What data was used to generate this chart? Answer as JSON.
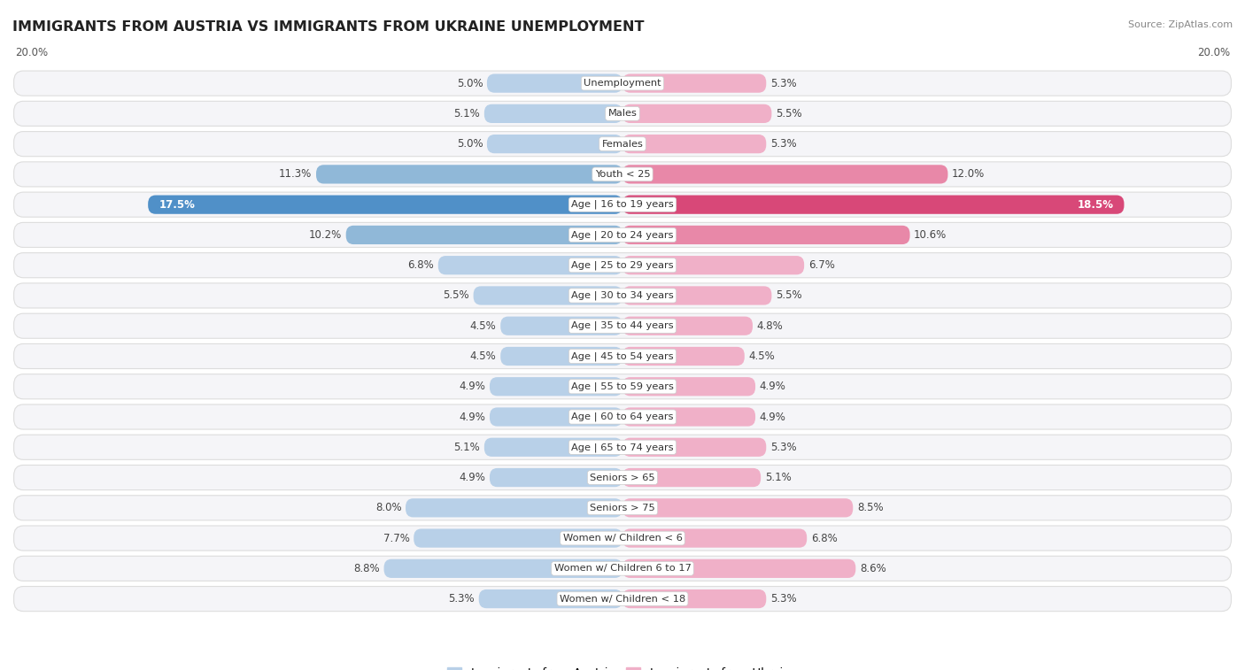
{
  "title": "IMMIGRANTS FROM AUSTRIA VS IMMIGRANTS FROM UKRAINE UNEMPLOYMENT",
  "source": "Source: ZipAtlas.com",
  "categories": [
    "Unemployment",
    "Males",
    "Females",
    "Youth < 25",
    "Age | 16 to 19 years",
    "Age | 20 to 24 years",
    "Age | 25 to 29 years",
    "Age | 30 to 34 years",
    "Age | 35 to 44 years",
    "Age | 45 to 54 years",
    "Age | 55 to 59 years",
    "Age | 60 to 64 years",
    "Age | 65 to 74 years",
    "Seniors > 65",
    "Seniors > 75",
    "Women w/ Children < 6",
    "Women w/ Children 6 to 17",
    "Women w/ Children < 18"
  ],
  "austria_values": [
    5.0,
    5.1,
    5.0,
    11.3,
    17.5,
    10.2,
    6.8,
    5.5,
    4.5,
    4.5,
    4.9,
    4.9,
    5.1,
    4.9,
    8.0,
    7.7,
    8.8,
    5.3
  ],
  "ukraine_values": [
    5.3,
    5.5,
    5.3,
    12.0,
    18.5,
    10.6,
    6.7,
    5.5,
    4.8,
    4.5,
    4.9,
    4.9,
    5.3,
    5.1,
    8.5,
    6.8,
    8.6,
    5.3
  ],
  "austria_color_light": "#b8d0e8",
  "austria_color_mid": "#90b8d8",
  "austria_color_dark": "#5090c8",
  "ukraine_color_light": "#f0b0c8",
  "ukraine_color_mid": "#e888a8",
  "ukraine_color_dark": "#d84878",
  "row_bg_color": "#f5f5f8",
  "row_outline_color": "#dddddd",
  "max_value": 20.0,
  "legend_austria": "Immigrants from Austria",
  "legend_ukraine": "Immigrants from Ukraine"
}
